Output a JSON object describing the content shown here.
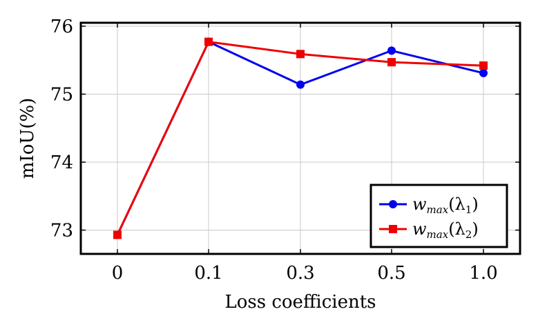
{
  "chart_data": {
    "type": "line",
    "title": "",
    "xlabel": "Loss coefficients",
    "ylabel": "mIoU(%)",
    "categories": [
      "0",
      "0.1",
      "0.3",
      "0.5",
      "1.0"
    ],
    "ylim": [
      72.65,
      76.05
    ],
    "yticks": [
      "73",
      "74",
      "75",
      "76"
    ],
    "grid": true,
    "legend_position": "bottom-right",
    "series": [
      {
        "name": "w_max(λ1)",
        "label_main": "w",
        "label_sub": "max",
        "label_arg": "(λ",
        "label_idx": "1",
        "label_close": ")",
        "color": "#0000ee",
        "marker": "circle",
        "values": [
          72.93,
          75.77,
          75.14,
          75.64,
          75.31
        ]
      },
      {
        "name": "w_max(λ2)",
        "label_main": "w",
        "label_sub": "max",
        "label_arg": "(λ",
        "label_idx": "2",
        "label_close": ")",
        "color": "#ee0000",
        "marker": "square",
        "values": [
          72.93,
          75.77,
          75.59,
          75.47,
          75.42
        ]
      }
    ]
  }
}
